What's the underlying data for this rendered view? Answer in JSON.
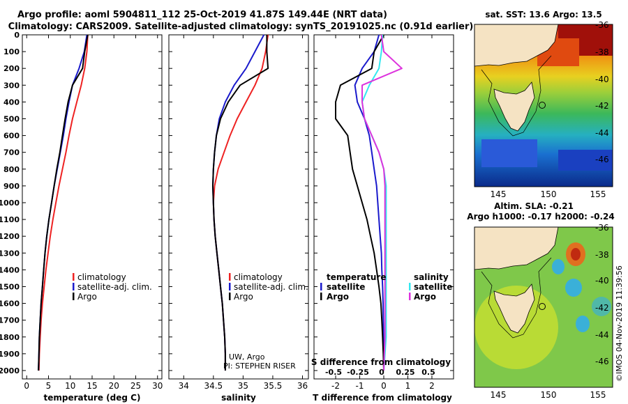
{
  "header": {
    "line1": "Argo profile: aoml 5904811_112 25-Oct-2019 41.87S 149.44E (NRT data)",
    "line2": "Climatology: CARS2009. Satellite-adjusted climatology: synTS_20191025.nc (0.91d earlier)"
  },
  "side_stamp": "©IMOS 04-Nov-2019 11:39:56",
  "colors": {
    "climatology": "#ee2222",
    "satellite": "#1a1acc",
    "argo": "#000000",
    "sat_salinity": "#33e8f0",
    "argo_salinity": "#dd33dd",
    "land": "#f5e3c3"
  },
  "chart_data": [
    {
      "type": "line",
      "xlabel": "temperature (deg C)",
      "ylabel": "",
      "xlim": [
        -1,
        31
      ],
      "ylim": [
        2050,
        0
      ],
      "xticks": [
        0,
        5,
        10,
        15,
        20,
        25,
        30
      ],
      "yticks": [
        0,
        100,
        200,
        300,
        400,
        500,
        600,
        700,
        800,
        900,
        1000,
        1100,
        1200,
        1300,
        1400,
        1500,
        1600,
        1700,
        1800,
        1900,
        2000
      ],
      "legend": [
        "climatology",
        "satellite-adj. clim.",
        "Argo"
      ],
      "series": [
        {
          "name": "climatology",
          "x": [
            14.0,
            13.8,
            13.3,
            12.5,
            11.5,
            10.5,
            9.7,
            9.0,
            8.2,
            7.4,
            6.7,
            6.0,
            5.4,
            4.9,
            4.4,
            4.0,
            3.6,
            3.3,
            3.1,
            2.9,
            2.8
          ],
          "y": [
            0,
            100,
            200,
            300,
            400,
            500,
            600,
            700,
            800,
            900,
            1000,
            1100,
            1200,
            1300,
            1400,
            1500,
            1600,
            1700,
            1800,
            1900,
            2000
          ]
        },
        {
          "name": "satellite-adj. clim.",
          "x": [
            13.8,
            13.2,
            12.0,
            10.5,
            9.7,
            9.0,
            8.4,
            7.7,
            7.0,
            6.3,
            5.7,
            5.1,
            4.6,
            4.2,
            3.9,
            3.6,
            3.3,
            3.1,
            2.9,
            2.8,
            2.7
          ],
          "y": [
            0,
            100,
            200,
            300,
            400,
            500,
            600,
            700,
            800,
            900,
            1000,
            1100,
            1200,
            1300,
            1400,
            1500,
            1600,
            1700,
            1800,
            1900,
            2000
          ]
        },
        {
          "name": "Argo",
          "x": [
            14.0,
            13.3,
            12.8,
            10.5,
            9.5,
            8.8,
            8.2,
            7.6,
            6.9,
            6.3,
            5.7,
            5.1,
            4.6,
            4.2,
            3.9,
            3.6,
            3.3,
            3.1,
            2.9,
            2.8,
            2.7
          ],
          "y": [
            0,
            100,
            200,
            300,
            400,
            500,
            600,
            700,
            800,
            900,
            1000,
            1100,
            1200,
            1300,
            1400,
            1500,
            1600,
            1700,
            1800,
            1900,
            2000
          ]
        }
      ]
    },
    {
      "type": "line",
      "xlabel": "salinity",
      "ylabel": "",
      "xlim": [
        33.75,
        36.1
      ],
      "ylim": [
        2050,
        0
      ],
      "xticks": [
        34,
        34.5,
        35,
        35.5,
        36
      ],
      "tick_labels": [
        "34",
        "34.5",
        "35",
        "35.5",
        "36"
      ],
      "legend": [
        "climatology",
        "satellite-adj. clim.",
        "Argo"
      ],
      "annotation": [
        "UW, Argo",
        "PI: STEPHEN RISER"
      ],
      "series": [
        {
          "name": "climatology",
          "x": [
            35.42,
            35.38,
            35.32,
            35.2,
            35.05,
            34.9,
            34.78,
            34.68,
            34.58,
            34.52,
            34.5,
            34.51,
            34.53,
            34.56,
            34.59,
            34.62,
            34.65,
            34.67,
            34.69,
            34.7,
            34.7
          ],
          "y": [
            0,
            100,
            200,
            300,
            400,
            500,
            600,
            700,
            800,
            900,
            1000,
            1100,
            1200,
            1300,
            1400,
            1500,
            1600,
            1700,
            1800,
            1900,
            2000
          ]
        },
        {
          "name": "satellite-adj. clim.",
          "x": [
            35.35,
            35.2,
            35.05,
            34.85,
            34.7,
            34.6,
            34.55,
            34.52,
            34.5,
            34.49,
            34.5,
            34.51,
            34.53,
            34.56,
            34.59,
            34.62,
            34.65,
            34.67,
            34.69,
            34.7,
            34.7
          ],
          "y": [
            0,
            100,
            200,
            300,
            400,
            500,
            600,
            700,
            800,
            900,
            1000,
            1100,
            1200,
            1300,
            1400,
            1500,
            1600,
            1700,
            1800,
            1900,
            2000
          ]
        },
        {
          "name": "Argo",
          "x": [
            35.4,
            35.4,
            35.42,
            34.95,
            34.75,
            34.62,
            34.55,
            34.52,
            34.5,
            34.49,
            34.5,
            34.51,
            34.53,
            34.56,
            34.59,
            34.62,
            34.65,
            34.67,
            34.69,
            34.7,
            34.7
          ],
          "y": [
            0,
            100,
            200,
            300,
            400,
            500,
            600,
            700,
            800,
            900,
            1000,
            1100,
            1200,
            1300,
            1400,
            1500,
            1600,
            1700,
            1800,
            1900,
            2000
          ]
        }
      ]
    },
    {
      "type": "line",
      "xlabel": "T difference from climatology",
      "ylabel": "",
      "xlim": [
        -2.9,
        2.9
      ],
      "ylim": [
        2050,
        0
      ],
      "xticks": [
        -2,
        -1,
        0,
        1,
        2
      ],
      "top_axis_label": "S difference from climatology",
      "top_axis_ticks": [
        "-0.5",
        "-0.25",
        "0",
        "0.25",
        "0.5"
      ],
      "legend_left": [
        "temperature",
        "satellite",
        "Argo"
      ],
      "legend_right": [
        "salinity",
        "satellite",
        "Argo"
      ],
      "series": [
        {
          "name": "temperature satellite",
          "x": [
            -0.2,
            -0.4,
            -0.9,
            -1.2,
            -1.1,
            -0.8,
            -0.6,
            -0.5,
            -0.4,
            -0.3,
            -0.25,
            -0.2,
            -0.15,
            -0.1,
            -0.08,
            -0.05,
            -0.03,
            -0.02,
            -0.01,
            0.0,
            0.0
          ],
          "y": [
            0,
            100,
            200,
            300,
            400,
            500,
            600,
            700,
            800,
            900,
            1000,
            1100,
            1200,
            1300,
            1400,
            1500,
            1600,
            1700,
            1800,
            1900,
            2000
          ]
        },
        {
          "name": "temperature Argo",
          "x": [
            0.0,
            -0.4,
            -0.5,
            -1.8,
            -2.0,
            -2.0,
            -1.5,
            -1.4,
            -1.3,
            -1.1,
            -0.9,
            -0.7,
            -0.55,
            -0.4,
            -0.3,
            -0.2,
            -0.12,
            -0.08,
            -0.05,
            -0.02,
            0.0
          ],
          "y": [
            0,
            100,
            200,
            300,
            400,
            500,
            600,
            700,
            800,
            900,
            1000,
            1100,
            1200,
            1300,
            1400,
            1500,
            1600,
            1700,
            1800,
            1900,
            2000
          ]
        },
        {
          "name": "salinity satellite",
          "x": [
            -0.05,
            -0.1,
            -0.2,
            -0.6,
            -0.9,
            -0.8,
            -0.5,
            -0.2,
            0.0,
            0.1,
            0.1,
            0.1,
            0.1,
            0.1,
            0.1,
            0.1,
            0.1,
            0.1,
            0.1,
            0.05,
            0.0
          ],
          "y": [
            0,
            100,
            200,
            300,
            400,
            500,
            600,
            700,
            800,
            900,
            1000,
            1100,
            1200,
            1300,
            1400,
            1500,
            1600,
            1700,
            1800,
            1900,
            2000
          ]
        },
        {
          "name": "salinity Argo",
          "x": [
            -0.1,
            0.0,
            0.75,
            -0.9,
            -0.9,
            -0.8,
            -0.5,
            -0.2,
            0.0,
            0.05,
            0.05,
            0.05,
            0.05,
            0.05,
            0.05,
            0.05,
            0.05,
            0.05,
            0.05,
            0.02,
            0.0
          ],
          "y": [
            0,
            100,
            200,
            300,
            400,
            500,
            600,
            700,
            800,
            900,
            1000,
            1100,
            1200,
            1300,
            1400,
            1500,
            1600,
            1700,
            1800,
            1900,
            2000
          ]
        }
      ]
    },
    {
      "type": "heatmap",
      "title": "sat. SST: 13.6 Argo: 13.5",
      "xticks": [
        145,
        150,
        155
      ],
      "yticks": [
        -36,
        -38,
        -40,
        -42,
        -44,
        -46
      ],
      "marker": {
        "lon": 149.44,
        "lat": -41.87
      }
    },
    {
      "type": "heatmap",
      "title": "Altim. SLA: -0.21",
      "subtitle": "Argo h1000: -0.17 h2000: -0.24",
      "xticks": [
        145,
        150,
        155
      ],
      "yticks": [
        -36,
        -38,
        -40,
        -42,
        -44,
        -46
      ],
      "marker": {
        "lon": 149.44,
        "lat": -41.87
      }
    }
  ]
}
